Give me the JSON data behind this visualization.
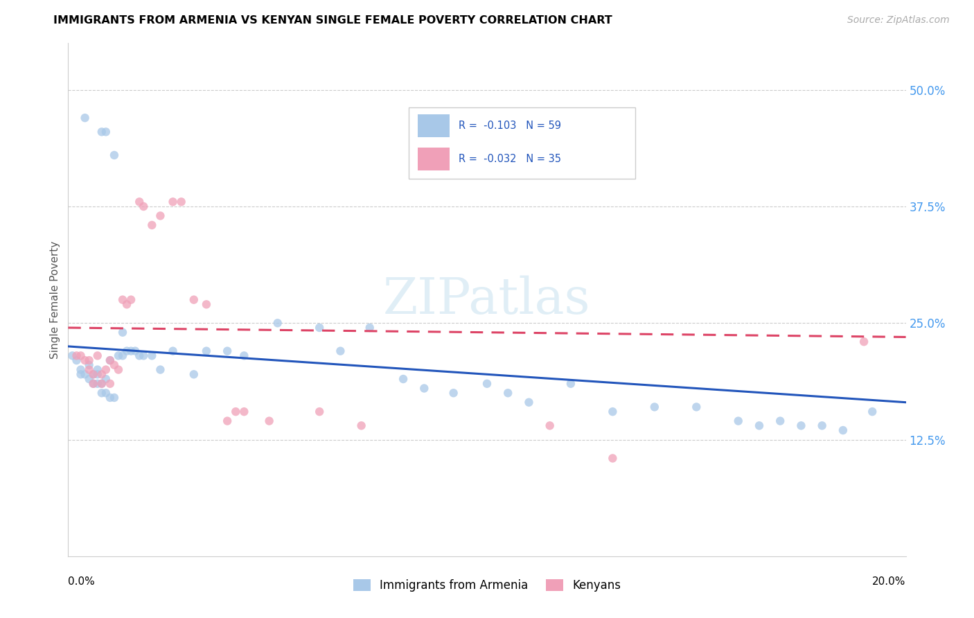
{
  "title": "IMMIGRANTS FROM ARMENIA VS KENYAN SINGLE FEMALE POVERTY CORRELATION CHART",
  "source": "Source: ZipAtlas.com",
  "ylabel": "Single Female Poverty",
  "ytick_labels": [
    "50.0%",
    "37.5%",
    "25.0%",
    "12.5%"
  ],
  "ytick_values": [
    0.5,
    0.375,
    0.25,
    0.125
  ],
  "xmin": 0.0,
  "xmax": 0.2,
  "ymin": 0.0,
  "ymax": 0.55,
  "legend_label1": "Immigrants from Armenia",
  "legend_label2": "Kenyans",
  "blue_color": "#a8c8e8",
  "pink_color": "#f0a0b8",
  "line_blue": "#2255bb",
  "line_pink": "#dd4466",
  "scatter_alpha": 0.75,
  "marker_size": 80,
  "blue_x": [
    0.004,
    0.008,
    0.009,
    0.011,
    0.001,
    0.002,
    0.003,
    0.003,
    0.004,
    0.005,
    0.005,
    0.006,
    0.006,
    0.007,
    0.007,
    0.007,
    0.008,
    0.008,
    0.009,
    0.009,
    0.01,
    0.01,
    0.011,
    0.012,
    0.013,
    0.013,
    0.014,
    0.015,
    0.016,
    0.017,
    0.018,
    0.02,
    0.022,
    0.025,
    0.03,
    0.033,
    0.038,
    0.042,
    0.05,
    0.06,
    0.065,
    0.072,
    0.08,
    0.085,
    0.092,
    0.1,
    0.105,
    0.11,
    0.12,
    0.13,
    0.14,
    0.15,
    0.16,
    0.165,
    0.17,
    0.175,
    0.18,
    0.185,
    0.192
  ],
  "blue_y": [
    0.47,
    0.455,
    0.455,
    0.43,
    0.215,
    0.21,
    0.2,
    0.195,
    0.195,
    0.205,
    0.19,
    0.195,
    0.185,
    0.2,
    0.195,
    0.185,
    0.175,
    0.185,
    0.19,
    0.175,
    0.21,
    0.17,
    0.17,
    0.215,
    0.24,
    0.215,
    0.22,
    0.22,
    0.22,
    0.215,
    0.215,
    0.215,
    0.2,
    0.22,
    0.195,
    0.22,
    0.22,
    0.215,
    0.25,
    0.245,
    0.22,
    0.245,
    0.19,
    0.18,
    0.175,
    0.185,
    0.175,
    0.165,
    0.185,
    0.155,
    0.16,
    0.16,
    0.145,
    0.14,
    0.145,
    0.14,
    0.14,
    0.135,
    0.155
  ],
  "pink_x": [
    0.002,
    0.003,
    0.004,
    0.005,
    0.005,
    0.006,
    0.006,
    0.007,
    0.008,
    0.008,
    0.009,
    0.01,
    0.01,
    0.011,
    0.012,
    0.013,
    0.014,
    0.015,
    0.017,
    0.018,
    0.02,
    0.022,
    0.025,
    0.027,
    0.03,
    0.033,
    0.038,
    0.04,
    0.042,
    0.048,
    0.06,
    0.07,
    0.115,
    0.13,
    0.19
  ],
  "pink_y": [
    0.215,
    0.215,
    0.21,
    0.21,
    0.2,
    0.195,
    0.185,
    0.215,
    0.195,
    0.185,
    0.2,
    0.21,
    0.185,
    0.205,
    0.2,
    0.275,
    0.27,
    0.275,
    0.38,
    0.375,
    0.355,
    0.365,
    0.38,
    0.38,
    0.275,
    0.27,
    0.145,
    0.155,
    0.155,
    0.145,
    0.155,
    0.14,
    0.14,
    0.105,
    0.23
  ]
}
